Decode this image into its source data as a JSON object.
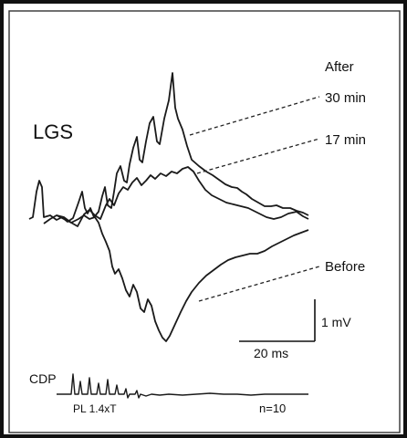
{
  "chart_data": {
    "type": "line",
    "title": "LGS",
    "legend_header": "After",
    "series": [
      {
        "name": "30 min",
        "label": "30 min"
      },
      {
        "name": "17 min",
        "label": "17 min"
      },
      {
        "name": "Before",
        "label": "Before"
      }
    ],
    "scale_bar": {
      "voltage_label": "1 mV",
      "time_label": "20 ms"
    },
    "cdp_trace": {
      "label": "CDP",
      "stimulus_label": "PL 1.4xT",
      "n_label": "n=10"
    },
    "grid": false
  },
  "colors": {
    "trace": "#1a1a1a",
    "border": "#111111",
    "background": "#ffffff"
  }
}
